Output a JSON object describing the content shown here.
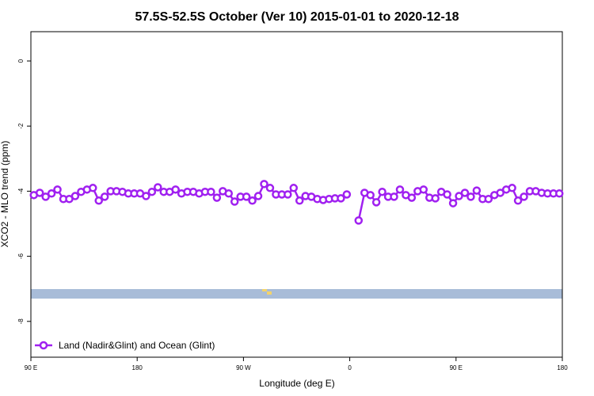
{
  "chart_data": {
    "type": "line",
    "title": "57.5S-52.5S October (Ver 10)   2015-01-01 to 2020-12-18",
    "x_label": "Longitude (deg E)",
    "y_label": "XCO2 - MLO trend (ppm)",
    "x": [
      92.5,
      97.5,
      102.5,
      107.5,
      112.5,
      117.5,
      122.5,
      127.5,
      132.5,
      137.5,
      142.5,
      147.5,
      152.5,
      157.5,
      162.5,
      167.5,
      172.5,
      177.5,
      182.5,
      187.5,
      192.5,
      197.5,
      202.5,
      207.5,
      212.5,
      217.5,
      222.5,
      227.5,
      232.5,
      237.5,
      242.5,
      247.5,
      252.5,
      257.5,
      262.5,
      267.5,
      272.5,
      277.5,
      282.5,
      287.5,
      292.5,
      297.5,
      302.5,
      307.5,
      312.5,
      317.5,
      322.5,
      327.5,
      332.5,
      337.5,
      342.5,
      347.5,
      352.5,
      357.5,
      362.5,
      367.5,
      372.5,
      377.5,
      382.5,
      387.5,
      392.5,
      397.5,
      402.5,
      407.5,
      412.5,
      417.5,
      422.5,
      427.5,
      432.5,
      437.5,
      442.5,
      447.5,
      452.5,
      457.5,
      462.5,
      467.5,
      472.5,
      477.5,
      482.5,
      487.5,
      492.5,
      497.5,
      502.5,
      507.5,
      512.5,
      517.5,
      522.5,
      527.5,
      532.5,
      537.5
    ],
    "series": [
      {
        "name": "Land (Nadir&Glint) and Ocean (Glint)",
        "color": "#a020f0",
        "values": [
          -4.12,
          -4.05,
          -4.17,
          -4.07,
          -3.95,
          -4.24,
          -4.24,
          -4.15,
          -4.02,
          -3.95,
          -3.9,
          -4.29,
          -4.17,
          -4.0,
          -4.0,
          -4.02,
          -4.07,
          -4.07,
          -4.07,
          -4.15,
          -4.02,
          -3.88,
          -4.02,
          -4.02,
          -3.95,
          -4.07,
          -4.02,
          -4.02,
          -4.07,
          -4.02,
          -4.02,
          -4.2,
          -4.0,
          -4.07,
          -4.32,
          -4.17,
          -4.17,
          -4.29,
          -4.15,
          -3.78,
          -3.9,
          -4.1,
          -4.1,
          -4.1,
          -3.9,
          -4.29,
          -4.15,
          -4.17,
          -4.24,
          -4.27,
          -4.24,
          -4.22,
          -4.22,
          -4.1,
          null,
          -4.9,
          -4.05,
          -4.12,
          -4.34,
          -4.02,
          -4.17,
          -4.17,
          -3.95,
          -4.12,
          -4.2,
          -4.0,
          -3.95,
          -4.2,
          -4.22,
          -4.02,
          -4.1,
          -4.37,
          -4.15,
          -4.05,
          -4.17,
          -3.98,
          -4.24,
          -4.24,
          -4.12,
          -4.05,
          -3.95,
          -3.9,
          -4.29,
          -4.17,
          -4.0,
          -4.0,
          -4.05,
          -4.07,
          -4.07,
          -4.07
        ]
      }
    ],
    "xlim": [
      90,
      540
    ],
    "xticks": [
      {
        "value": 90,
        "label": "90 E"
      },
      {
        "value": 180,
        "label": "180"
      },
      {
        "value": 270,
        "label": "90 W"
      },
      {
        "value": 360,
        "label": "0"
      },
      {
        "value": 450,
        "label": "90 E"
      },
      {
        "value": 540,
        "label": "180"
      }
    ],
    "ylim": [
      -9.1,
      0.9
    ],
    "yticks": [
      0,
      -2,
      -4,
      -6,
      -8
    ],
    "legend": "bottom-left"
  }
}
